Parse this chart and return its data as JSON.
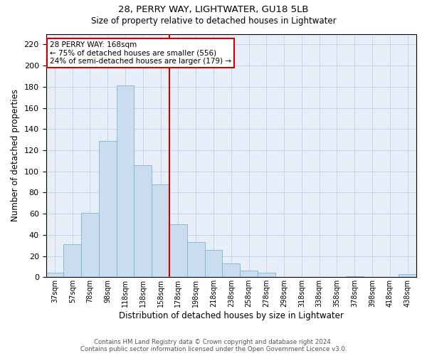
{
  "title1": "28, PERRY WAY, LIGHTWATER, GU18 5LB",
  "title2": "Size of property relative to detached houses in Lightwater",
  "xlabel": "Distribution of detached houses by size in Lightwater",
  "ylabel": "Number of detached properties",
  "property_label": "28 PERRY WAY: 168sqm",
  "annotation_line1": "← 75% of detached houses are smaller (556)",
  "annotation_line2": "24% of semi-detached houses are larger (179) →",
  "bins": [
    "37sqm",
    "57sqm",
    "78sqm",
    "98sqm",
    "118sqm",
    "138sqm",
    "158sqm",
    "178sqm",
    "198sqm",
    "218sqm",
    "238sqm",
    "258sqm",
    "278sqm",
    "298sqm",
    "318sqm",
    "338sqm",
    "358sqm",
    "378sqm",
    "398sqm",
    "418sqm",
    "438sqm"
  ],
  "bar_values": [
    4,
    31,
    61,
    129,
    181,
    106,
    88,
    50,
    33,
    26,
    13,
    6,
    4,
    0,
    0,
    0,
    0,
    1,
    0,
    0,
    3
  ],
  "bar_color": "#c9ddef",
  "bar_edge_color": "#7ab4d8",
  "vline_color": "#cc0000",
  "ylim": [
    0,
    230
  ],
  "yticks": [
    0,
    20,
    40,
    60,
    80,
    100,
    120,
    140,
    160,
    180,
    200,
    220
  ],
  "grid_color": "#c8d4e8",
  "bg_color": "#e8eef8",
  "annotation_box_color": "#ffffff",
  "annotation_box_edge": "#cc0000",
  "footer1": "Contains HM Land Registry data © Crown copyright and database right 2024.",
  "footer2": "Contains public sector information licensed under the Open Government Licence v3.0."
}
